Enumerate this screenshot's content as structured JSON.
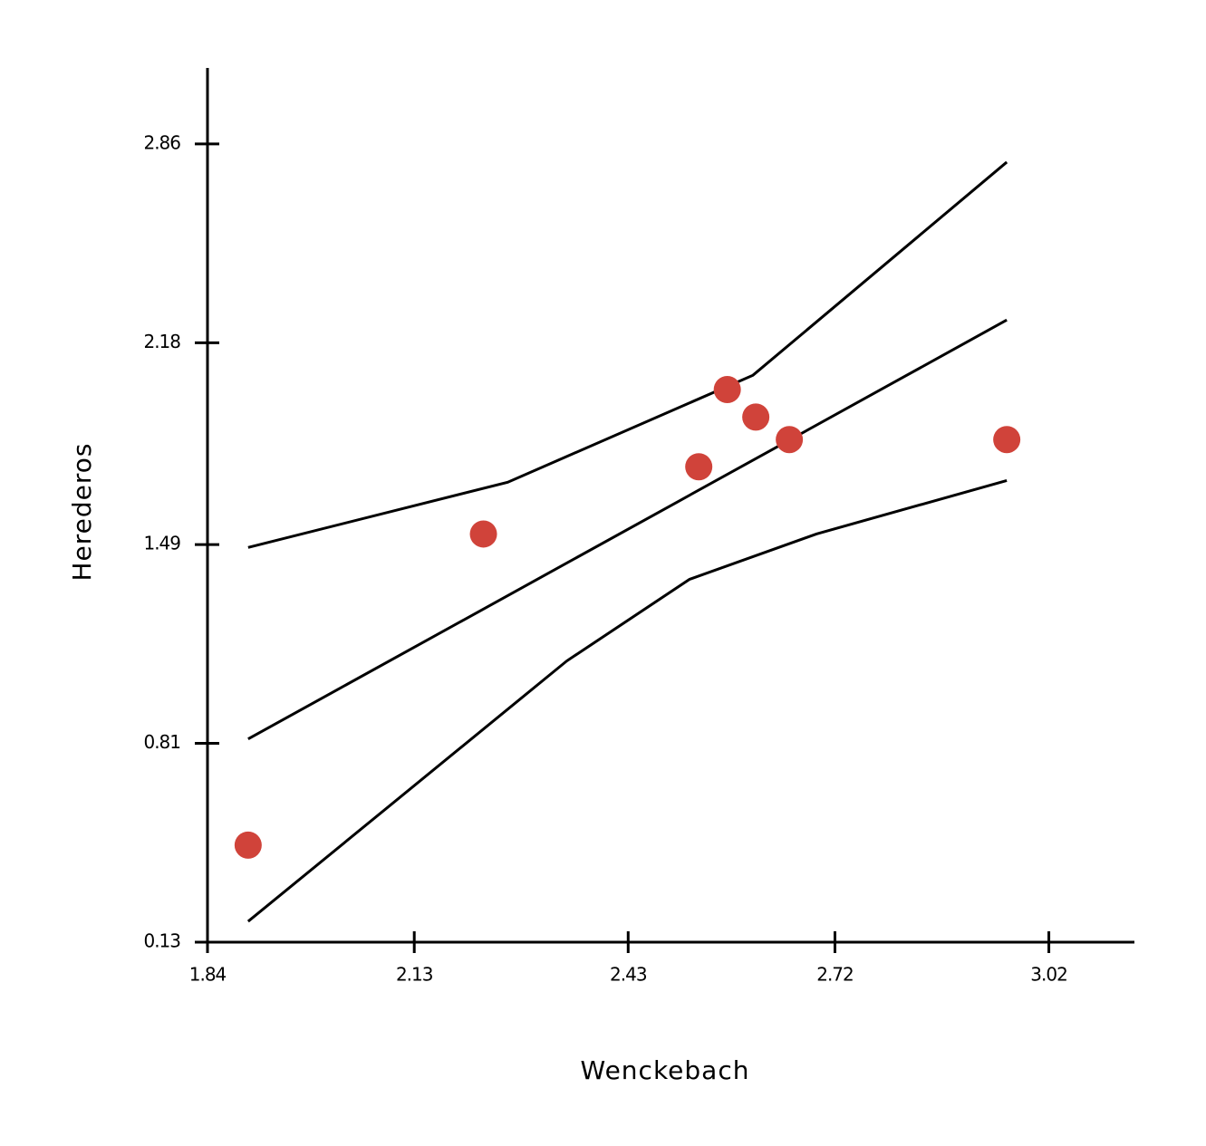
{
  "chart_data": {
    "type": "scatter",
    "x_label": "Wenckebach",
    "y_label": "Herederos",
    "x": [
      1.897,
      2.227,
      2.529,
      2.569,
      2.609,
      2.656,
      2.961
    ],
    "values": [
      0.462,
      1.526,
      1.756,
      2.02,
      1.926,
      1.849,
      1.849
    ],
    "color": "#d0433a",
    "lines": [
      {
        "x": [
          1.897,
          2.2,
          2.5,
          2.8,
          2.961
        ],
        "values": [
          0.825,
          1.233,
          1.637,
          2.041,
          2.258
        ],
        "color": "#000000"
      },
      {
        "x": [
          1.897,
          2.261,
          2.605,
          2.961
        ],
        "values": [
          1.48,
          1.703,
          2.069,
          2.798
        ],
        "color": "#000000"
      },
      {
        "x": [
          1.897,
          2.344,
          2.516,
          2.694,
          2.961
        ],
        "values": [
          0.201,
          1.092,
          1.371,
          1.526,
          1.709
        ],
        "color": "#000000"
      }
    ],
    "xlim": [
      1.84,
      3.14
    ],
    "ylim": [
      0.13,
      3.12
    ],
    "xticks": [
      1.84,
      2.13,
      2.43,
      2.72,
      3.02
    ],
    "yticks": [
      0.13,
      0.81,
      1.49,
      2.18,
      2.86
    ]
  }
}
